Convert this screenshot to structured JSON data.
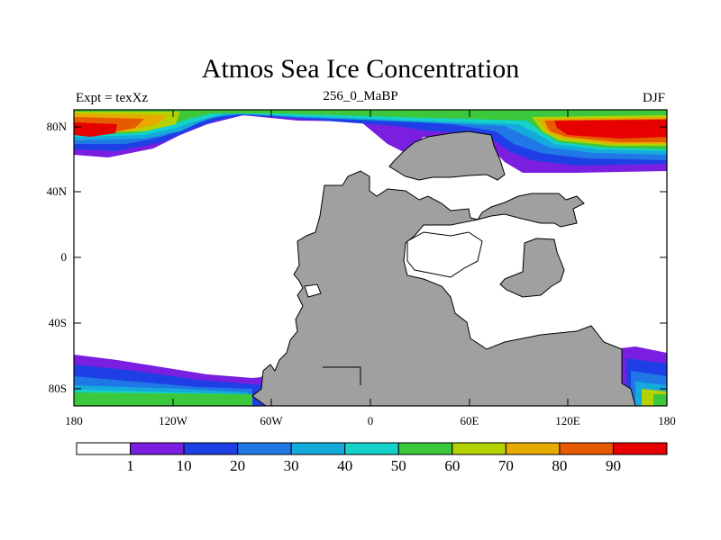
{
  "title": "Atmos Sea Ice Concentration",
  "subtitle_left": "Expt = texXz",
  "subtitle_center": "256_0_MaBP",
  "subtitle_right": "DJF",
  "map": {
    "projection": "cylindrical equidistant",
    "lon_range": [
      -180,
      180
    ],
    "lat_range": [
      -90,
      90
    ],
    "lat_ticks": [
      "80N",
      "40N",
      "0",
      "40S",
      "80S"
    ],
    "lon_ticks": [
      "180",
      "120W",
      "60W",
      "0",
      "60E",
      "120E",
      "180"
    ],
    "land_color": "#a0a0a0",
    "ocean_color": "#ffffff"
  },
  "colorbar": {
    "levels": [
      "1",
      "10",
      "20",
      "30",
      "40",
      "50",
      "60",
      "70",
      "80",
      "90"
    ],
    "colors": [
      "#ffffff",
      "#7a1fe0",
      "#1f3fe6",
      "#1f78e6",
      "#14aadc",
      "#14d2c8",
      "#3cc83c",
      "#b4d200",
      "#e6aa00",
      "#e65a00",
      "#e60000"
    ]
  }
}
